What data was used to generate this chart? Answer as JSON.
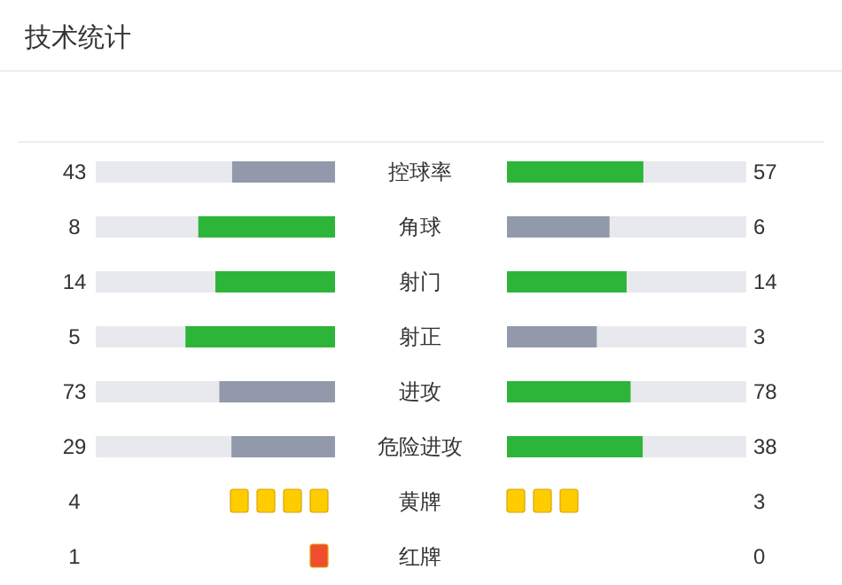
{
  "chart_data": [
    {
      "type": "other",
      "data_labels": true,
      "title": "技术统计",
      "categories": [
        "控球率",
        "角球",
        "射门",
        "射正",
        "进攻",
        "危险进攻"
      ],
      "series": [
        {
          "values": [
            43,
            8,
            14,
            5,
            73,
            29
          ],
          "colors": [
            "#9199aa",
            "#2db53a",
            "#2db53a",
            "#2db53a",
            "#9199aa",
            "#9199aa"
          ]
        },
        {
          "values": [
            57,
            6,
            14,
            3,
            78,
            38
          ],
          "colors": [
            "#2db53a",
            "#9199aa",
            "#2db53a",
            "#9199aa",
            "#2db53a",
            "#2db53a"
          ]
        }
      ]
    },
    {
      "type": "other",
      "data_labels": true,
      "categories": [
        "黄牌",
        "红牌"
      ],
      "series": [
        {
          "type": "scatter",
          "values": [
            4,
            1
          ],
          "colors": [
            "#ffcc00",
            "#f04d2e"
          ]
        },
        {
          "type": "scatter",
          "values": [
            3,
            0
          ],
          "colors": [
            "#ffcc00",
            null
          ]
        }
      ]
    }
  ]
}
